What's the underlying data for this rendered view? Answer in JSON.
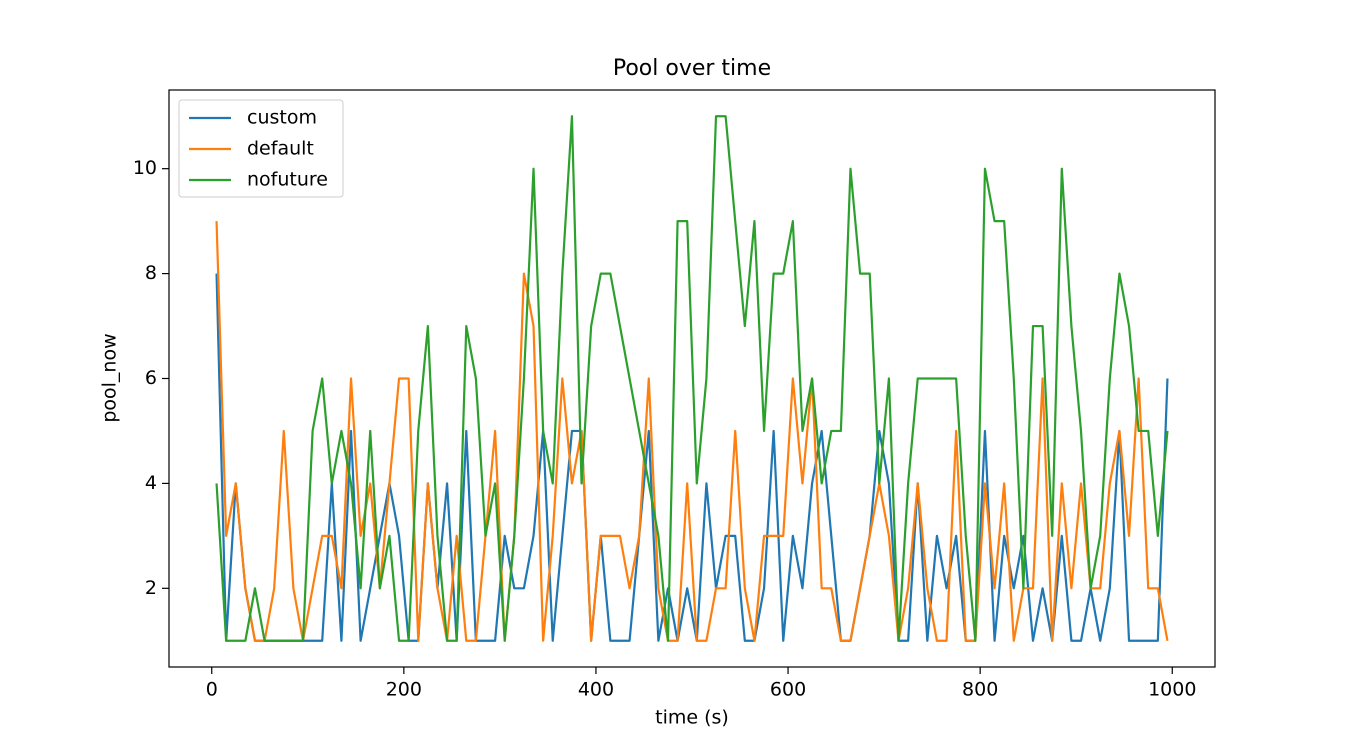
{
  "chart_data": {
    "type": "line",
    "title": "Pool over time",
    "xlabel": "time (s)",
    "ylabel": "pool_now",
    "x": [
      5,
      15,
      25,
      35,
      45,
      55,
      65,
      75,
      85,
      95,
      105,
      115,
      125,
      135,
      145,
      155,
      165,
      175,
      185,
      195,
      205,
      215,
      225,
      235,
      245,
      255,
      265,
      275,
      285,
      295,
      305,
      315,
      325,
      335,
      345,
      355,
      365,
      375,
      385,
      395,
      405,
      415,
      425,
      435,
      445,
      455,
      465,
      475,
      485,
      495,
      505,
      515,
      525,
      535,
      545,
      555,
      565,
      575,
      585,
      595,
      605,
      615,
      625,
      635,
      645,
      655,
      665,
      675,
      685,
      695,
      705,
      715,
      725,
      735,
      745,
      755,
      765,
      775,
      785,
      795,
      805,
      815,
      825,
      835,
      845,
      855,
      865,
      875,
      885,
      895,
      905,
      915,
      925,
      935,
      945,
      955,
      965,
      975,
      985,
      995
    ],
    "series": [
      {
        "name": "custom",
        "color": "#1f77b4",
        "values": [
          8,
          1,
          4,
          2,
          1,
          1,
          1,
          1,
          1,
          1,
          1,
          1,
          4,
          1,
          5,
          1,
          2,
          3,
          4,
          3,
          1,
          1,
          4,
          2,
          4,
          1,
          5,
          1,
          1,
          1,
          3,
          2,
          2,
          3,
          5,
          1,
          3,
          5,
          5,
          1,
          3,
          1,
          1,
          1,
          3,
          5,
          1,
          2,
          1,
          2,
          1,
          4,
          2,
          3,
          3,
          1,
          1,
          2,
          5,
          1,
          3,
          2,
          4,
          5,
          3,
          1,
          1,
          2,
          3,
          5,
          4,
          1,
          1,
          4,
          1,
          3,
          2,
          3,
          1,
          1,
          5,
          1,
          3,
          2,
          3,
          1,
          2,
          1,
          3,
          1,
          1,
          2,
          1,
          2,
          5,
          1,
          1,
          1,
          1,
          6
        ]
      },
      {
        "name": "default",
        "color": "#ff7f0e",
        "values": [
          9,
          3,
          4,
          2,
          1,
          1,
          2,
          5,
          2,
          1,
          2,
          3,
          3,
          2,
          6,
          3,
          4,
          2,
          4,
          6,
          6,
          1,
          4,
          2,
          1,
          3,
          1,
          1,
          3,
          5,
          1,
          3,
          8,
          7,
          1,
          3,
          6,
          4,
          5,
          1,
          3,
          3,
          3,
          2,
          3,
          6,
          2,
          1,
          1,
          4,
          1,
          1,
          2,
          2,
          5,
          2,
          1,
          3,
          3,
          3,
          6,
          4,
          6,
          2,
          2,
          1,
          1,
          2,
          3,
          4,
          3,
          1,
          2,
          4,
          2,
          1,
          1,
          5,
          1,
          1,
          4,
          2,
          4,
          1,
          2,
          2,
          6,
          1,
          4,
          2,
          4,
          2,
          2,
          4,
          5,
          3,
          6,
          2,
          2,
          1
        ]
      },
      {
        "name": "nofuture",
        "color": "#2ca02c",
        "values": [
          4,
          1,
          1,
          1,
          2,
          1,
          1,
          1,
          1,
          1,
          5,
          6,
          4,
          5,
          4,
          2,
          5,
          2,
          3,
          1,
          1,
          5,
          7,
          3,
          1,
          1,
          7,
          6,
          3,
          4,
          1,
          3,
          6,
          10,
          5,
          4,
          8,
          11,
          4,
          7,
          8,
          8,
          7,
          6,
          5,
          4,
          3,
          1,
          9,
          9,
          4,
          6,
          11,
          11,
          9,
          7,
          9,
          5,
          8,
          8,
          9,
          5,
          6,
          4,
          5,
          5,
          10,
          8,
          8,
          4,
          6,
          1,
          4,
          6,
          6,
          6,
          6,
          6,
          3,
          1,
          10,
          9,
          9,
          6,
          2,
          7,
          7,
          3,
          10,
          7,
          5,
          2,
          3,
          6,
          8,
          7,
          5,
          5,
          3,
          5
        ]
      }
    ],
    "xlim": [
      -44.5,
      1044.5
    ],
    "ylim": [
      0.5,
      11.5
    ],
    "xticks": [
      0,
      200,
      400,
      600,
      800,
      1000
    ],
    "yticks": [
      2,
      4,
      6,
      8,
      10
    ],
    "legend": "upper left"
  }
}
